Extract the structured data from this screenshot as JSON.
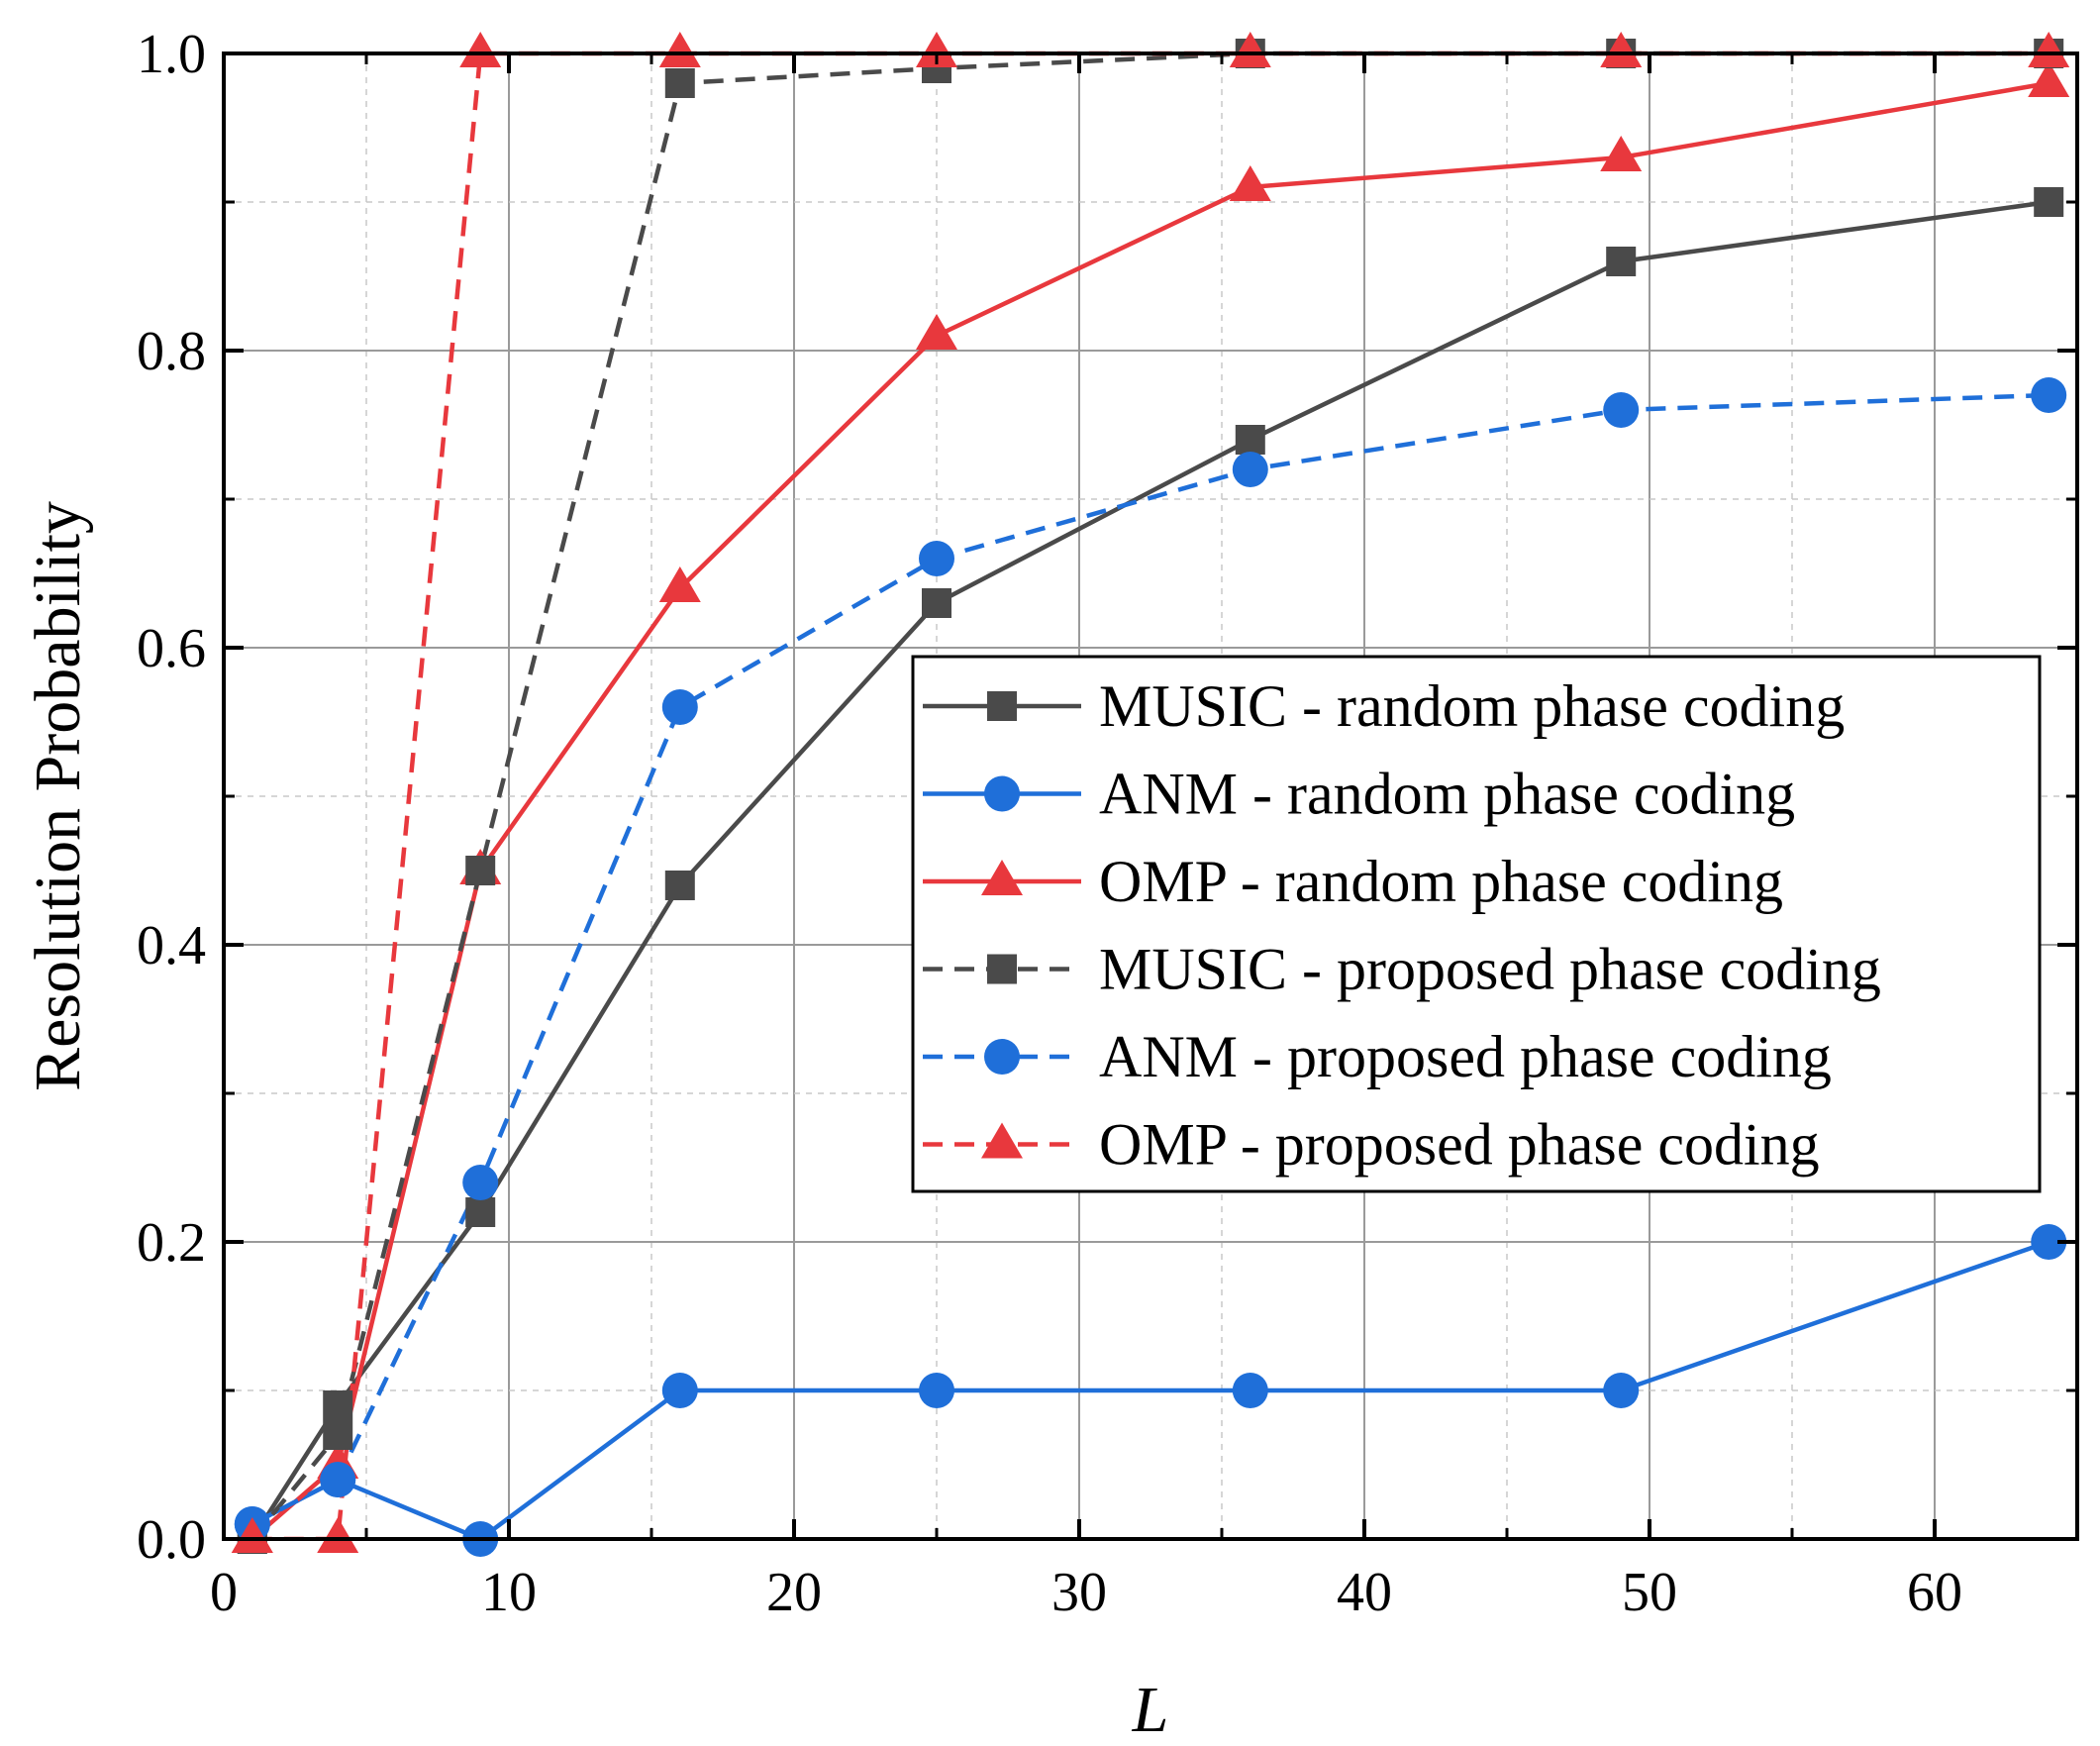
{
  "chart_data": {
    "type": "line",
    "title": "",
    "xlabel": "L",
    "ylabel": "Resolution Probability",
    "xlim": [
      0,
      65
    ],
    "ylim": [
      0,
      1.0
    ],
    "xticks": [
      0,
      10,
      20,
      30,
      40,
      50,
      60
    ],
    "yticks": [
      0.0,
      0.2,
      0.4,
      0.6,
      0.8,
      1.0
    ],
    "xtick_labels": [
      "0",
      "10",
      "20",
      "30",
      "40",
      "50",
      "60"
    ],
    "ytick_labels": [
      "0.0",
      "0.2",
      "0.4",
      "0.6",
      "0.8",
      "1.0"
    ],
    "grid": true,
    "legend_position": "center-right",
    "x": [
      1,
      4,
      9,
      16,
      25,
      36,
      49,
      64
    ],
    "series": [
      {
        "name": "MUSIC - random phase coding",
        "values": [
          0.0,
          0.09,
          0.22,
          0.44,
          0.63,
          0.74,
          0.86,
          0.9
        ],
        "color": "#4a4a4a",
        "marker": "square",
        "dash": "solid"
      },
      {
        "name": "ANM - random phase coding",
        "values": [
          0.01,
          0.04,
          0.0,
          0.1,
          0.1,
          0.1,
          0.1,
          0.2
        ],
        "color": "#1f6fd9",
        "marker": "circle",
        "dash": "solid"
      },
      {
        "name": "OMP - random phase coding",
        "values": [
          0.0,
          0.05,
          0.45,
          0.64,
          0.81,
          0.91,
          0.93,
          0.98
        ],
        "color": "#e8383d",
        "marker": "triangle",
        "dash": "solid"
      },
      {
        "name": "MUSIC - proposed phase coding",
        "values": [
          0.0,
          0.07,
          0.45,
          0.98,
          0.99,
          1.0,
          1.0,
          1.0
        ],
        "color": "#4a4a4a",
        "marker": "square",
        "dash": "dashed"
      },
      {
        "name": "ANM - proposed phase coding",
        "values": [
          0.01,
          0.04,
          0.24,
          0.56,
          0.66,
          0.72,
          0.76,
          0.77
        ],
        "color": "#1f6fd9",
        "marker": "circle",
        "dash": "dashed"
      },
      {
        "name": "OMP - proposed phase coding",
        "values": [
          0.0,
          0.0,
          1.0,
          1.0,
          1.0,
          1.0,
          1.0,
          1.0
        ],
        "color": "#e8383d",
        "marker": "triangle",
        "dash": "dashed"
      }
    ]
  }
}
